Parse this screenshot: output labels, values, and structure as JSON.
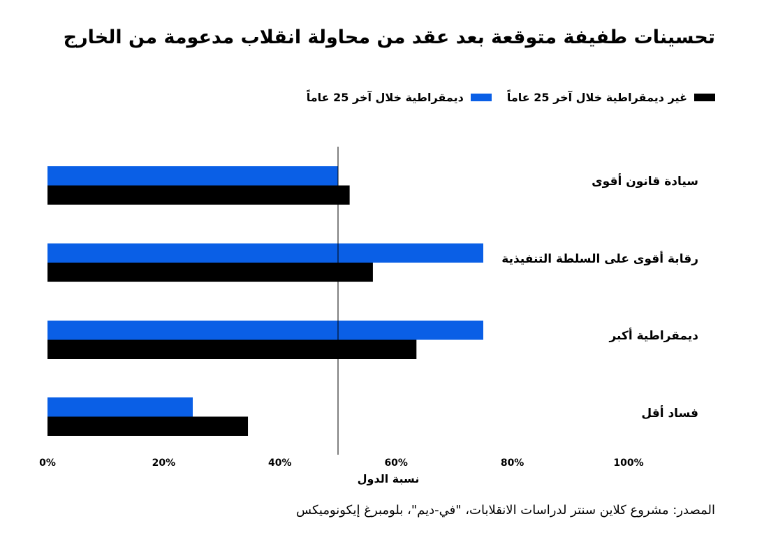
{
  "chart_data": {
    "type": "bar",
    "orientation": "horizontal",
    "title": "تحسينات طفيفة متوقعة بعد عقد من محاولة انقلاب مدعومة من الخارج",
    "xlabel": "نسبة الدول",
    "ylabel": "",
    "xlim": [
      0,
      100
    ],
    "x_ticks": [
      "0%",
      "20%",
      "40%",
      "60%",
      "80%",
      "100%"
    ],
    "reference_line": 50,
    "categories": [
      "سيادة قانون أقوى",
      "رقابة أقوى على السلطة التنفيذية",
      "ديمقراطية أكبر",
      "فساد أقل"
    ],
    "series": [
      {
        "name": "ديمقراطية خلال آخر 25 عاماً",
        "color": "#0a5fe6",
        "values": [
          50,
          75,
          75,
          25
        ]
      },
      {
        "name": "غير ديمقراطية خلال آخر 25 عاماً",
        "color": "#000000",
        "values": [
          52,
          56,
          63.5,
          34.5
        ]
      }
    ],
    "legend_position": "top-right",
    "grid": false
  },
  "source": "المصدر: مشروع كلاين سنتر لدراسات الانقلابات، \"في-ديم\"، بلومبرغ إيكونوميكس"
}
